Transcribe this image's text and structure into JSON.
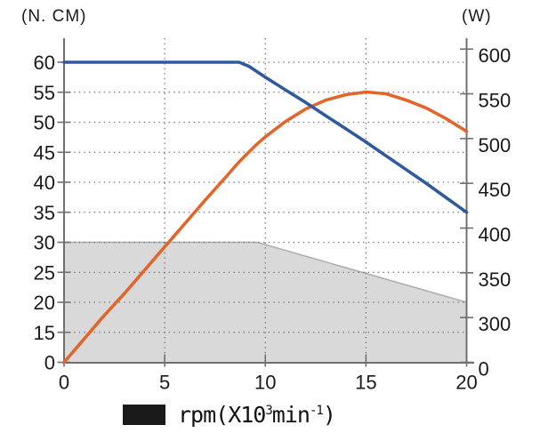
{
  "page": {
    "left_axis_unit": "(N. CM)",
    "right_axis_unit": "(W)"
  },
  "legend": {
    "swatch_color": "#1a1a1a",
    "label_prefix": "rpm(X10",
    "label_sup1": "3",
    "label_mid": "min",
    "label_sup2": "-1",
    "label_suffix": ")",
    "label_full": "rpm(X10³min⁻¹)"
  },
  "colors": {
    "torque_line": "#2f5b9e",
    "power_line": "#e1662b",
    "safe_area_fill": "#d9d9d9",
    "safe_area_edge": "#a7aeb6",
    "axis": "#707070",
    "grid_dots": "#6f6f6f",
    "text": "#1a1a1a",
    "legend_swatch": "#1a1a1a"
  },
  "chart_data": {
    "type": "line",
    "title": "",
    "x_axis": {
      "label": "rpm(X10³min⁻¹)",
      "range": [
        0,
        20
      ],
      "ticks": [
        0,
        5,
        10,
        15,
        20
      ]
    },
    "left_axis": {
      "label": "(N. CM)",
      "meaning": "torque",
      "ticks": [
        0,
        15,
        20,
        25,
        30,
        35,
        40,
        45,
        50,
        55,
        60
      ],
      "note": "bottom segment 0-15 is compressed into a single tick interval"
    },
    "right_axis": {
      "label": "(W)",
      "meaning": "output power",
      "ticks": [
        0,
        300,
        350,
        400,
        450,
        500,
        550,
        600
      ],
      "note": "bottom segment 0-300 is compressed into a single tick interval"
    },
    "grid": {
      "style": "dotted",
      "vertical_at_x": [
        5,
        10,
        15
      ],
      "horizontal_at_left_values": [
        15,
        20,
        25,
        30,
        35,
        40,
        45,
        50,
        55,
        60
      ]
    },
    "legend_position": "bottom",
    "series": [
      {
        "name": "torque",
        "kind": "line",
        "axis": "left",
        "color": "#2f5b9e",
        "points": [
          [
            0,
            60
          ],
          [
            8.7,
            60
          ],
          [
            9.2,
            59.3
          ],
          [
            10,
            57.5
          ],
          [
            11,
            55.4
          ],
          [
            12,
            53.3
          ],
          [
            13,
            51.1
          ],
          [
            14,
            48.9
          ],
          [
            15,
            46.7
          ],
          [
            16,
            44.4
          ],
          [
            17,
            42.1
          ],
          [
            18,
            39.8
          ],
          [
            19,
            37.4
          ],
          [
            20,
            35
          ]
        ]
      },
      {
        "name": "output-power",
        "kind": "line",
        "axis": "right",
        "color": "#e1662b",
        "points": [
          [
            0,
            0
          ],
          [
            1,
            157
          ],
          [
            1.9,
            300
          ],
          [
            3,
            327
          ],
          [
            4,
            353
          ],
          [
            5,
            379
          ],
          [
            6,
            405
          ],
          [
            7,
            431
          ],
          [
            8,
            456
          ],
          [
            8.7,
            474
          ],
          [
            9.5,
            492
          ],
          [
            10,
            502
          ],
          [
            11,
            519
          ],
          [
            12,
            533
          ],
          [
            13,
            543
          ],
          [
            14,
            549
          ],
          [
            15,
            552
          ],
          [
            16,
            550
          ],
          [
            17,
            543
          ],
          [
            18,
            534
          ],
          [
            19,
            522
          ],
          [
            20,
            508
          ]
        ]
      },
      {
        "name": "safe-operating-area",
        "kind": "area",
        "axis": "left",
        "fill": "#d9d9d9",
        "edge": "#a7aeb6",
        "points": [
          [
            0,
            30
          ],
          [
            9.6,
            30
          ],
          [
            20,
            20
          ]
        ]
      }
    ]
  }
}
